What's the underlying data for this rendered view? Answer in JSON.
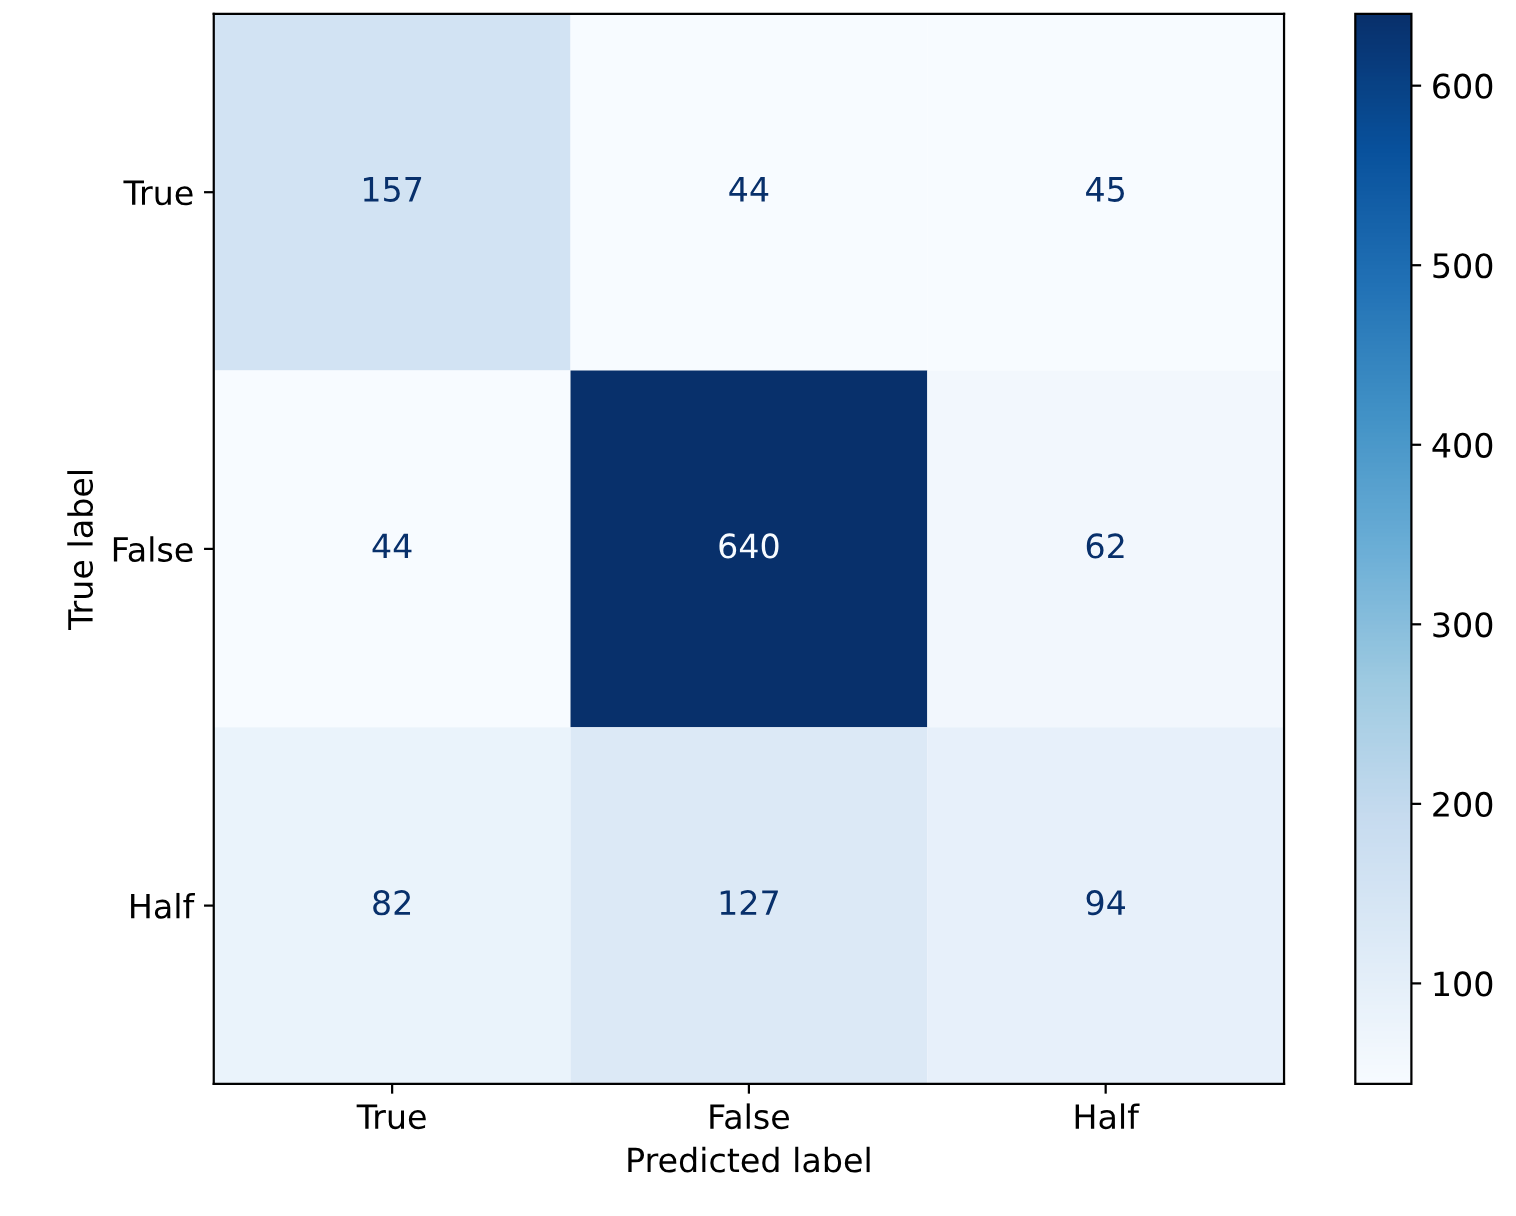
{
  "chart_data": {
    "type": "heatmap",
    "categories": [
      "True",
      "False",
      "Half"
    ],
    "y_categories": [
      "True",
      "False",
      "Half"
    ],
    "cells": [
      [
        157,
        44,
        45
      ],
      [
        44,
        640,
        62
      ],
      [
        82,
        127,
        94
      ]
    ],
    "clim": [
      44,
      640
    ],
    "cticks": [
      100,
      200,
      300,
      400,
      500,
      600
    ],
    "xlabel": "Predicted label",
    "ylabel": "True label",
    "data_labels": true
  }
}
